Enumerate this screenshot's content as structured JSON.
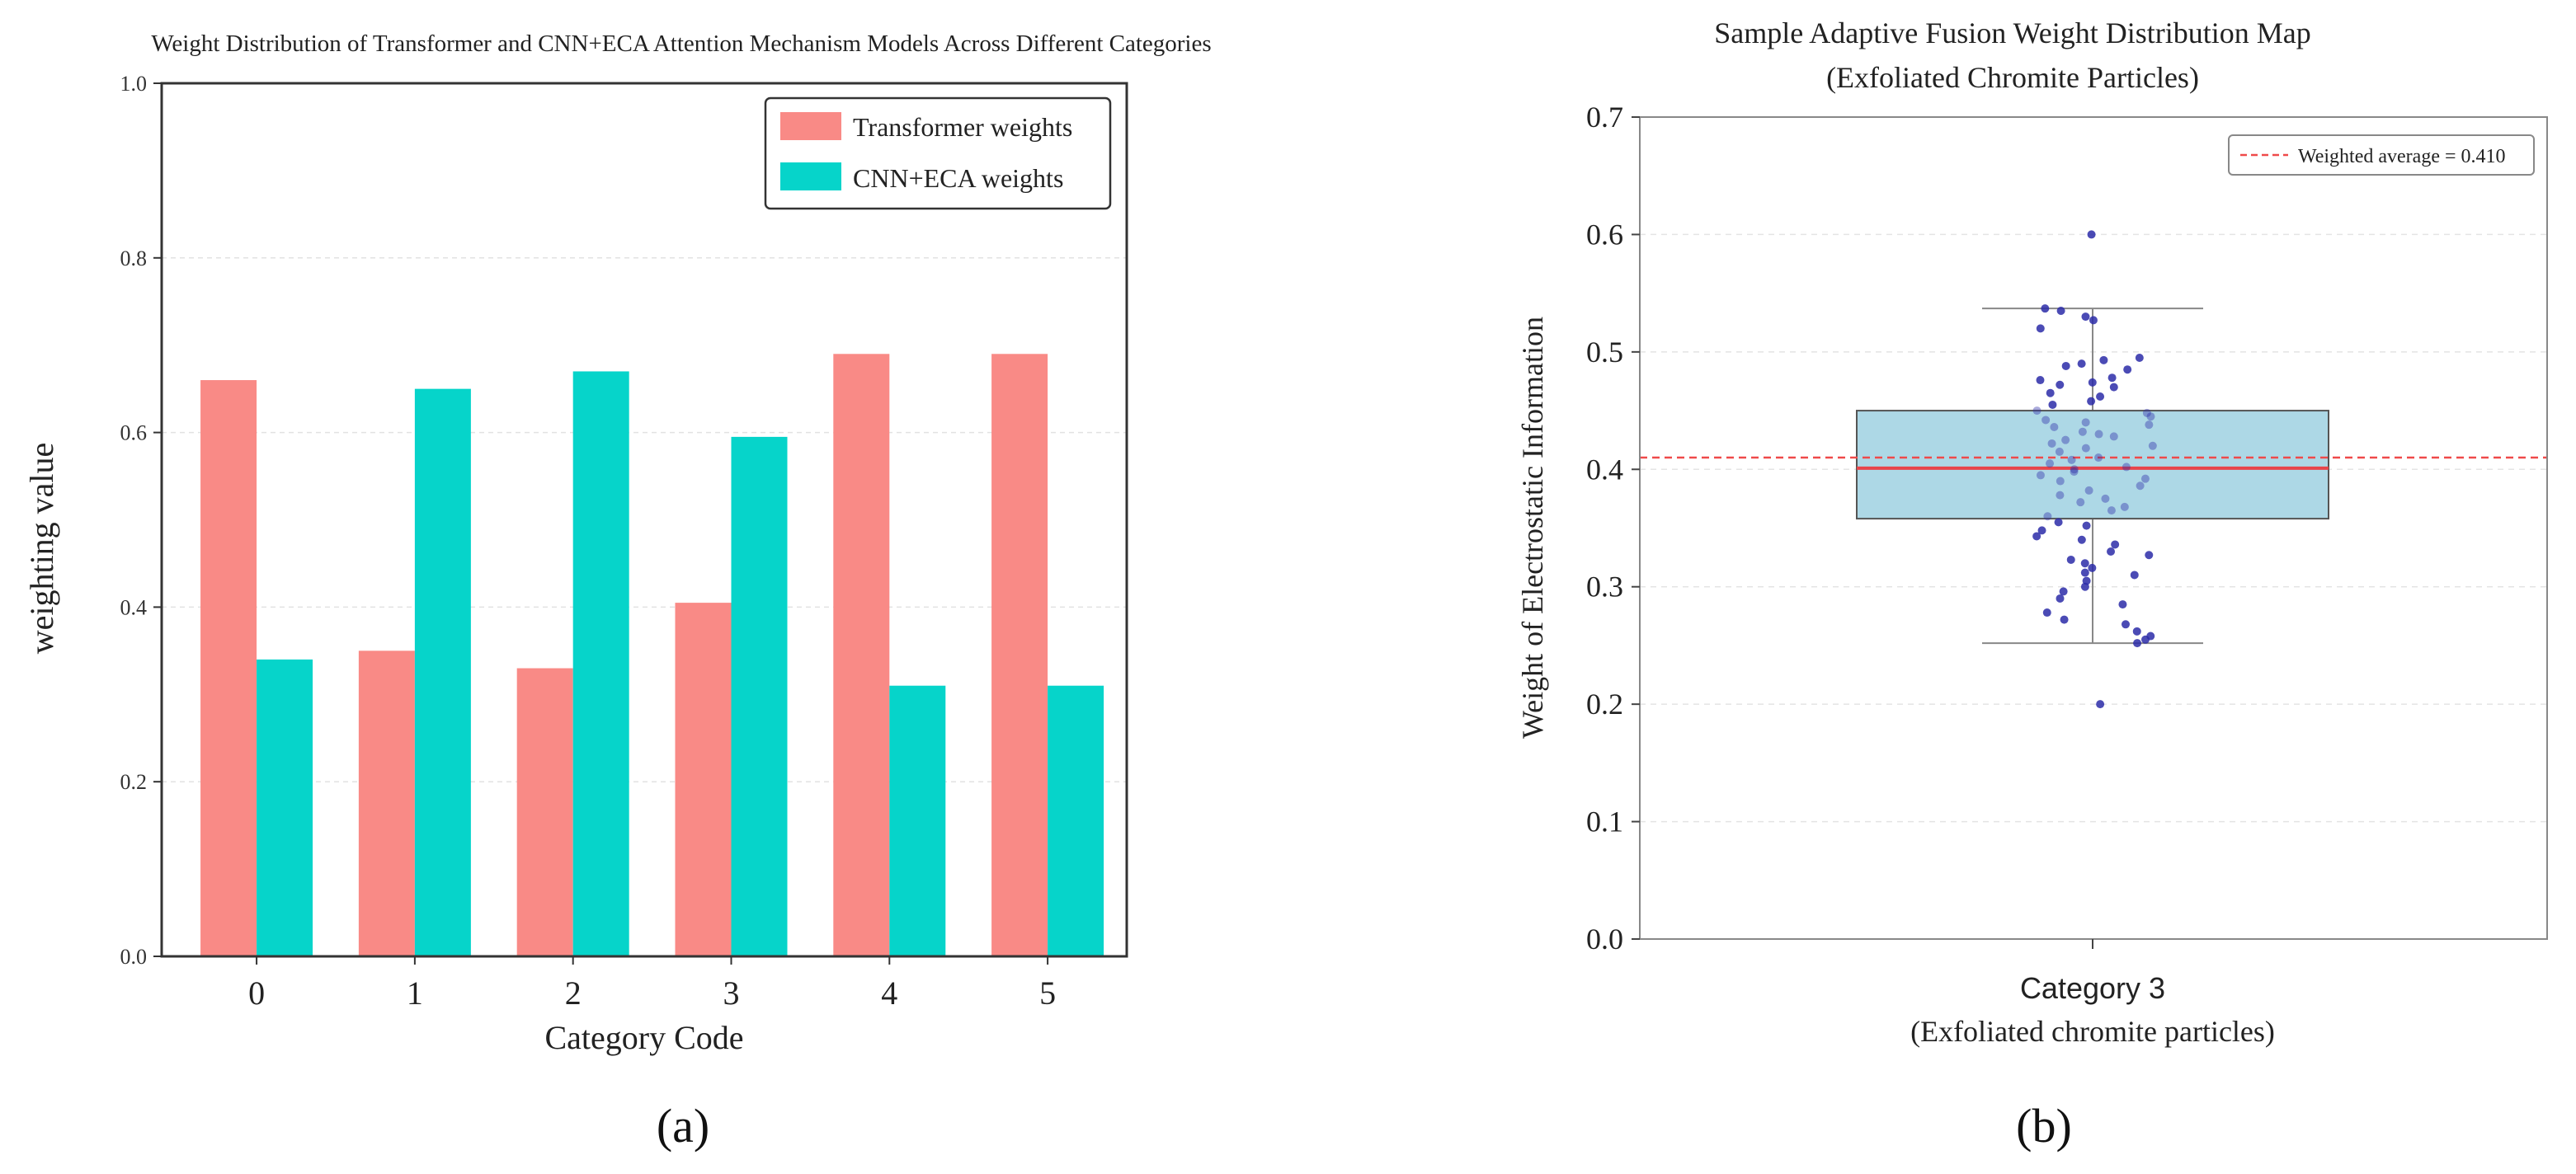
{
  "chart_data": [
    {
      "type": "bar",
      "panel_label": "(a)",
      "title": "Weight Distribution of Transformer and CNN+ECA Attention Mechanism Models Across Different Categories",
      "xlabel": "Category Code",
      "ylabel": "weighting value",
      "categories": [
        "0",
        "1",
        "2",
        "3",
        "4",
        "5"
      ],
      "ylim": [
        0,
        1.0
      ],
      "yticks": [
        "0.0",
        "0.2",
        "0.4",
        "0.6",
        "0.8",
        "1.0"
      ],
      "grid": "horizontal dashed",
      "legend_position": "top-right",
      "series": [
        {
          "name": "Transformer weights",
          "color": "#f98a86",
          "values": [
            0.66,
            0.35,
            0.33,
            0.405,
            0.69,
            0.69
          ]
        },
        {
          "name": "CNN+ECA weights",
          "color": "#06d4ca",
          "values": [
            0.34,
            0.65,
            0.67,
            0.595,
            0.31,
            0.31
          ]
        }
      ]
    },
    {
      "type": "box",
      "panel_label": "(b)",
      "title": "Sample Adaptive Fusion Weight Distribution Map",
      "subtitle": "(Exfoliated Chromite Particles)",
      "ylabel": "Weight of Electrostatic Information",
      "category_label": "Category 3",
      "category_sublabel": "(Exfoliated chromite particles)",
      "ylim": [
        0,
        0.7
      ],
      "yticks": [
        "0.0",
        "0.1",
        "0.2",
        "0.3",
        "0.4",
        "0.5",
        "0.6",
        "0.7"
      ],
      "grid": "horizontal dashed",
      "legend_position": "top-right",
      "box": {
        "q1": 0.358,
        "median": 0.401,
        "q3": 0.45,
        "whisker_low": 0.252,
        "whisker_high": 0.537,
        "color": "#add8e6",
        "median_color": "#e8454a"
      },
      "reference_line": {
        "label": "Weighted average = 0.410",
        "value": 0.41,
        "color": "#ef4a4a"
      },
      "point_color": "#2b2ba8",
      "points": [
        0.6,
        0.2,
        0.537,
        0.535,
        0.53,
        0.527,
        0.52,
        0.495,
        0.493,
        0.49,
        0.488,
        0.485,
        0.478,
        0.476,
        0.474,
        0.472,
        0.47,
        0.465,
        0.462,
        0.458,
        0.455,
        0.45,
        0.448,
        0.445,
        0.442,
        0.44,
        0.438,
        0.436,
        0.432,
        0.43,
        0.428,
        0.425,
        0.422,
        0.42,
        0.418,
        0.415,
        0.41,
        0.408,
        0.405,
        0.402,
        0.4,
        0.398,
        0.395,
        0.392,
        0.39,
        0.386,
        0.382,
        0.378,
        0.375,
        0.372,
        0.368,
        0.365,
        0.36,
        0.355,
        0.352,
        0.348,
        0.343,
        0.34,
        0.336,
        0.33,
        0.327,
        0.323,
        0.32,
        0.316,
        0.312,
        0.31,
        0.305,
        0.3,
        0.296,
        0.29,
        0.285,
        0.278,
        0.272,
        0.268,
        0.262,
        0.258,
        0.255,
        0.252
      ]
    }
  ]
}
